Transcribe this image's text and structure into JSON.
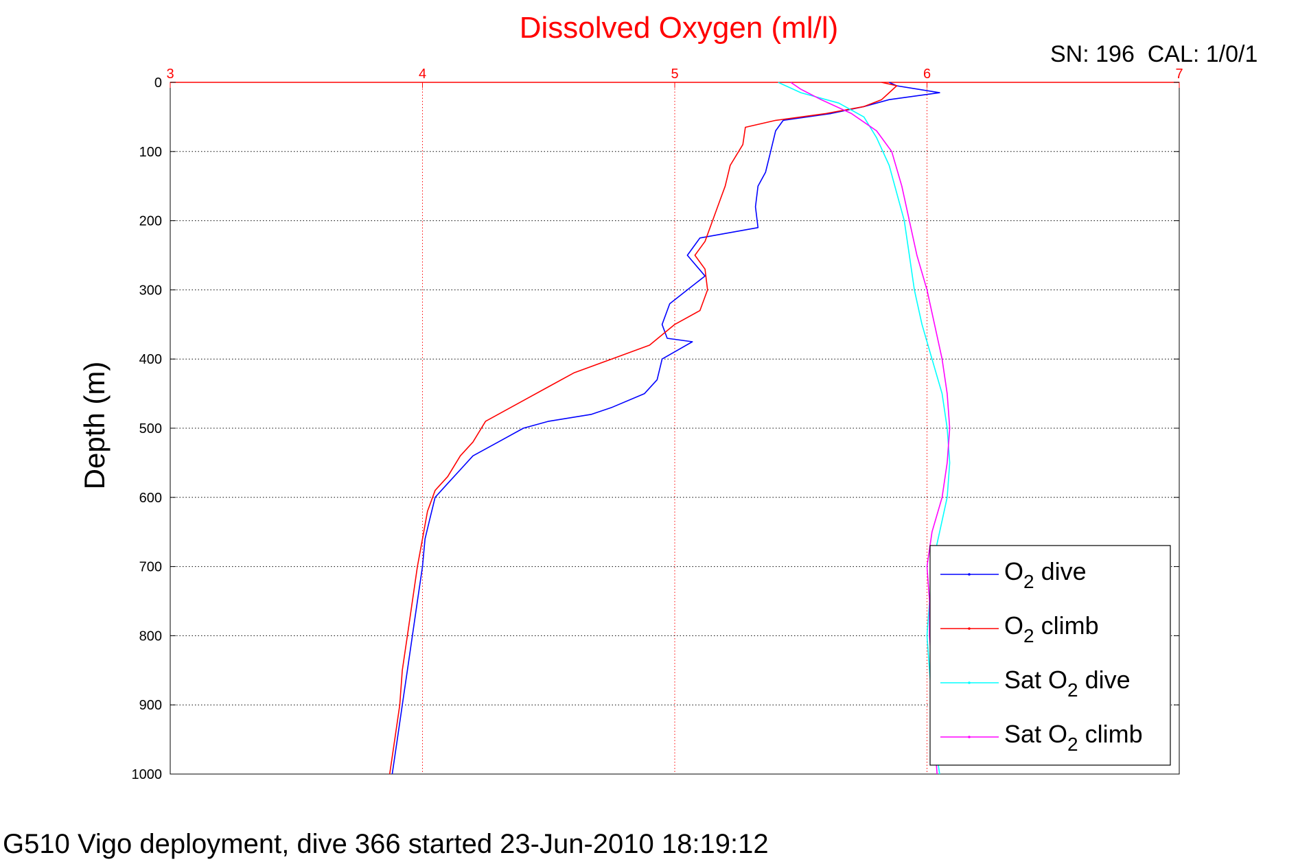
{
  "chart_data": {
    "type": "line",
    "title": "Dissolved Oxygen (ml/l)",
    "subtitle_right": "SN: 196  CAL: 1/0/1",
    "footer": "G510 Vigo deployment, dive 366 started 23-Jun-2010 18:19:12",
    "xlabel": "",
    "ylabel": "Depth (m)",
    "xlim": [
      3,
      7
    ],
    "ylim": [
      0,
      1000
    ],
    "y_reversed": true,
    "x_axis_position": "top",
    "x_ticks": [
      "3",
      "4",
      "5",
      "6",
      "7"
    ],
    "y_ticks": [
      "0",
      "100",
      "200",
      "300",
      "400",
      "500",
      "600",
      "700",
      "800",
      "900",
      "1000"
    ],
    "grid": true,
    "legend_position": "bottom-right",
    "colors": {
      "title": "#ff0000",
      "x_axis": "#ff0000",
      "O2_dive": "#0000ff",
      "O2_climb": "#ff0000",
      "Sat_O2_dive": "#00ffff",
      "Sat_O2_climb": "#ff00ff"
    },
    "series": [
      {
        "name": "O2 dive",
        "legend_main": "O",
        "legend_sub": "2",
        "legend_tail": " dive",
        "color": "#0000ff",
        "points": [
          [
            5.85,
            0
          ],
          [
            5.88,
            5
          ],
          [
            6.05,
            15
          ],
          [
            5.85,
            25
          ],
          [
            5.75,
            35
          ],
          [
            5.62,
            45
          ],
          [
            5.43,
            55
          ],
          [
            5.4,
            70
          ],
          [
            5.38,
            100
          ],
          [
            5.36,
            130
          ],
          [
            5.33,
            150
          ],
          [
            5.32,
            180
          ],
          [
            5.33,
            210
          ],
          [
            5.1,
            225
          ],
          [
            5.05,
            250
          ],
          [
            5.12,
            280
          ],
          [
            5.05,
            300
          ],
          [
            4.98,
            320
          ],
          [
            4.95,
            350
          ],
          [
            4.97,
            370
          ],
          [
            5.07,
            375
          ],
          [
            4.95,
            400
          ],
          [
            4.93,
            430
          ],
          [
            4.88,
            450
          ],
          [
            4.75,
            470
          ],
          [
            4.67,
            480
          ],
          [
            4.5,
            490
          ],
          [
            4.4,
            500
          ],
          [
            4.3,
            520
          ],
          [
            4.2,
            540
          ],
          [
            4.15,
            560
          ],
          [
            4.1,
            580
          ],
          [
            4.05,
            600
          ],
          [
            4.03,
            630
          ],
          [
            4.01,
            660
          ],
          [
            4.0,
            700
          ],
          [
            3.98,
            750
          ],
          [
            3.96,
            800
          ],
          [
            3.94,
            850
          ],
          [
            3.92,
            900
          ],
          [
            3.9,
            950
          ],
          [
            3.88,
            1000
          ]
        ]
      },
      {
        "name": "O2 climb",
        "legend_main": "O",
        "legend_sub": "2",
        "legend_tail": " climb",
        "color": "#ff0000",
        "points": [
          [
            5.82,
            0
          ],
          [
            5.88,
            5
          ],
          [
            5.85,
            15
          ],
          [
            5.82,
            25
          ],
          [
            5.75,
            35
          ],
          [
            5.6,
            45
          ],
          [
            5.4,
            55
          ],
          [
            5.28,
            65
          ],
          [
            5.27,
            90
          ],
          [
            5.22,
            120
          ],
          [
            5.2,
            150
          ],
          [
            5.18,
            170
          ],
          [
            5.15,
            200
          ],
          [
            5.12,
            230
          ],
          [
            5.08,
            250
          ],
          [
            5.12,
            270
          ],
          [
            5.13,
            300
          ],
          [
            5.1,
            330
          ],
          [
            5.0,
            350
          ],
          [
            4.9,
            380
          ],
          [
            4.75,
            400
          ],
          [
            4.6,
            420
          ],
          [
            4.5,
            440
          ],
          [
            4.4,
            460
          ],
          [
            4.3,
            480
          ],
          [
            4.25,
            490
          ],
          [
            4.2,
            520
          ],
          [
            4.15,
            540
          ],
          [
            4.1,
            570
          ],
          [
            4.05,
            590
          ],
          [
            4.02,
            620
          ],
          [
            4.0,
            660
          ],
          [
            3.98,
            700
          ],
          [
            3.96,
            750
          ],
          [
            3.94,
            800
          ],
          [
            3.92,
            850
          ],
          [
            3.91,
            900
          ],
          [
            3.89,
            950
          ],
          [
            3.87,
            1000
          ]
        ]
      },
      {
        "name": "Sat O2 dive",
        "legend_main": "Sat O",
        "legend_sub": "2",
        "legend_tail": " dive",
        "color": "#00ffff",
        "points": [
          [
            5.41,
            0
          ],
          [
            5.5,
            15
          ],
          [
            5.65,
            30
          ],
          [
            5.75,
            50
          ],
          [
            5.8,
            80
          ],
          [
            5.85,
            120
          ],
          [
            5.88,
            160
          ],
          [
            5.91,
            200
          ],
          [
            5.93,
            250
          ],
          [
            5.95,
            300
          ],
          [
            5.98,
            350
          ],
          [
            6.02,
            400
          ],
          [
            6.06,
            450
          ],
          [
            6.08,
            500
          ],
          [
            6.09,
            550
          ],
          [
            6.08,
            600
          ],
          [
            6.05,
            650
          ],
          [
            6.02,
            700
          ],
          [
            6.01,
            750
          ],
          [
            6.0,
            800
          ],
          [
            6.01,
            850
          ],
          [
            6.02,
            900
          ],
          [
            6.03,
            950
          ],
          [
            6.05,
            1000
          ]
        ]
      },
      {
        "name": "Sat O2 climb",
        "legend_main": "Sat O",
        "legend_sub": "2",
        "legend_tail": " climb",
        "color": "#ff00ff",
        "points": [
          [
            5.46,
            0
          ],
          [
            5.5,
            10
          ],
          [
            5.58,
            25
          ],
          [
            5.7,
            45
          ],
          [
            5.8,
            70
          ],
          [
            5.86,
            100
          ],
          [
            5.9,
            150
          ],
          [
            5.93,
            200
          ],
          [
            5.96,
            250
          ],
          [
            6.0,
            300
          ],
          [
            6.03,
            350
          ],
          [
            6.06,
            400
          ],
          [
            6.08,
            450
          ],
          [
            6.09,
            500
          ],
          [
            6.08,
            550
          ],
          [
            6.06,
            600
          ],
          [
            6.02,
            650
          ],
          [
            6.0,
            700
          ],
          [
            6.01,
            750
          ],
          [
            6.01,
            800
          ],
          [
            6.02,
            850
          ],
          [
            6.02,
            900
          ],
          [
            6.03,
            950
          ],
          [
            6.04,
            1000
          ]
        ]
      }
    ]
  }
}
